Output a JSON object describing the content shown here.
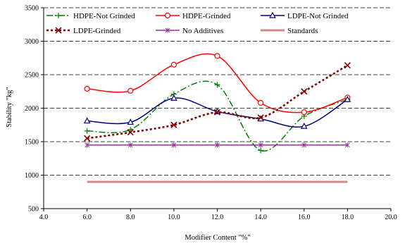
{
  "chart_data": {
    "type": "line",
    "xlabel": "Modifier Content \"%\"",
    "ylabel": "Stability \"kg\"",
    "xlim": [
      4.0,
      20.0
    ],
    "ylim": [
      500,
      3500
    ],
    "x_ticks": [
      "4.0",
      "6.0",
      "8.0",
      "10.0",
      "12.0",
      "14.0",
      "16.0",
      "18.0",
      "20.0"
    ],
    "y_ticks": [
      "500",
      "1000",
      "1500",
      "2000",
      "2500",
      "3000",
      "3500"
    ],
    "grid": "horizontal dashed",
    "legend_position": "top",
    "series": [
      {
        "name": "HDPE-Not Grinded",
        "color": "#008000",
        "marker": "plus",
        "line": "dash-dot",
        "x": [
          6,
          8,
          10,
          12,
          14,
          16,
          18
        ],
        "values": [
          1660,
          1680,
          2210,
          2350,
          1370,
          1880,
          2130
        ]
      },
      {
        "name": "HDPE-Grinded",
        "color": "#ff0000",
        "marker": "circle",
        "line": "solid",
        "x": [
          6,
          8,
          10,
          12,
          14,
          16,
          18
        ],
        "values": [
          2290,
          2260,
          2650,
          2780,
          2080,
          1940,
          2160
        ]
      },
      {
        "name": "LDPE-Not Grinded",
        "color": "#000080",
        "marker": "triangle",
        "line": "solid",
        "x": [
          6,
          8,
          10,
          12,
          14,
          16,
          18
        ],
        "values": [
          1810,
          1790,
          2150,
          1950,
          1840,
          1730,
          2130
        ]
      },
      {
        "name": "LDPE-Grinded",
        "color": "#800000",
        "marker": "x",
        "line": "dotted",
        "x": [
          6,
          8,
          10,
          12,
          14,
          16,
          18
        ],
        "values": [
          1550,
          1640,
          1750,
          1940,
          1860,
          2250,
          2640
        ]
      },
      {
        "name": "No Additives",
        "color": "#993399",
        "marker": "asterisk",
        "line": "solid",
        "x": [
          6,
          8,
          10,
          12,
          14,
          16,
          18
        ],
        "values": [
          1450,
          1450,
          1450,
          1450,
          1450,
          1450,
          1450
        ]
      },
      {
        "name": "Standards",
        "color": "#d08a86",
        "marker": "none",
        "line": "thick",
        "x": [
          6,
          18
        ],
        "values": [
          900,
          900
        ]
      }
    ]
  }
}
